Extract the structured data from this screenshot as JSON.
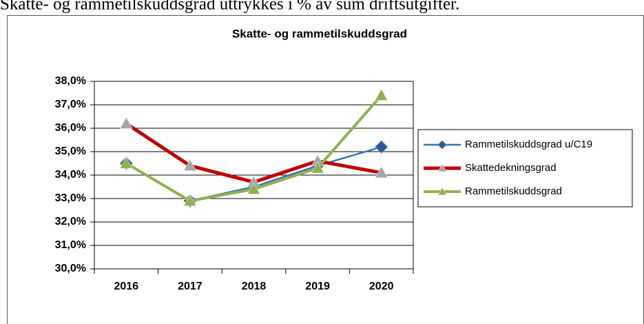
{
  "caption": "Skatte- og rammetilskuddsgrad uttrykkes i % av sum driftsutgifter.",
  "chart_data": {
    "type": "line",
    "title": "Skatte- og rammetilskuddsgrad",
    "categories": [
      "2016",
      "2017",
      "2018",
      "2019",
      "2020"
    ],
    "series": [
      {
        "name": "Rammetilskuddsgrad u/C19",
        "color": "#2e75b6",
        "marker": "diamond",
        "marker_color": "#2e5597",
        "values": [
          34.5,
          32.9,
          33.5,
          34.4,
          35.2
        ]
      },
      {
        "name": "Skattedekningsgrad",
        "color": "#c00000",
        "marker": "triangle",
        "marker_color": "#a6a6a6",
        "values": [
          36.2,
          34.4,
          33.7,
          34.6,
          34.1
        ]
      },
      {
        "name": "Rammetilskuddsgrad",
        "color": "#92b050",
        "marker": "triangle",
        "marker_color": "#92b050",
        "values": [
          34.5,
          32.9,
          33.4,
          34.3,
          37.4
        ]
      }
    ],
    "ylim": [
      30,
      38
    ],
    "yticks": [
      {
        "value": 30,
        "label": "30,0%"
      },
      {
        "value": 31,
        "label": "31,0%"
      },
      {
        "value": 32,
        "label": "32,0%"
      },
      {
        "value": 33,
        "label": "33,0%"
      },
      {
        "value": 34,
        "label": "34,0%"
      },
      {
        "value": 35,
        "label": "35,0%"
      },
      {
        "value": 36,
        "label": "36,0%"
      },
      {
        "value": 37,
        "label": "37,0%"
      },
      {
        "value": 38,
        "label": "38,0%"
      }
    ],
    "grid": true,
    "legend": "right"
  }
}
